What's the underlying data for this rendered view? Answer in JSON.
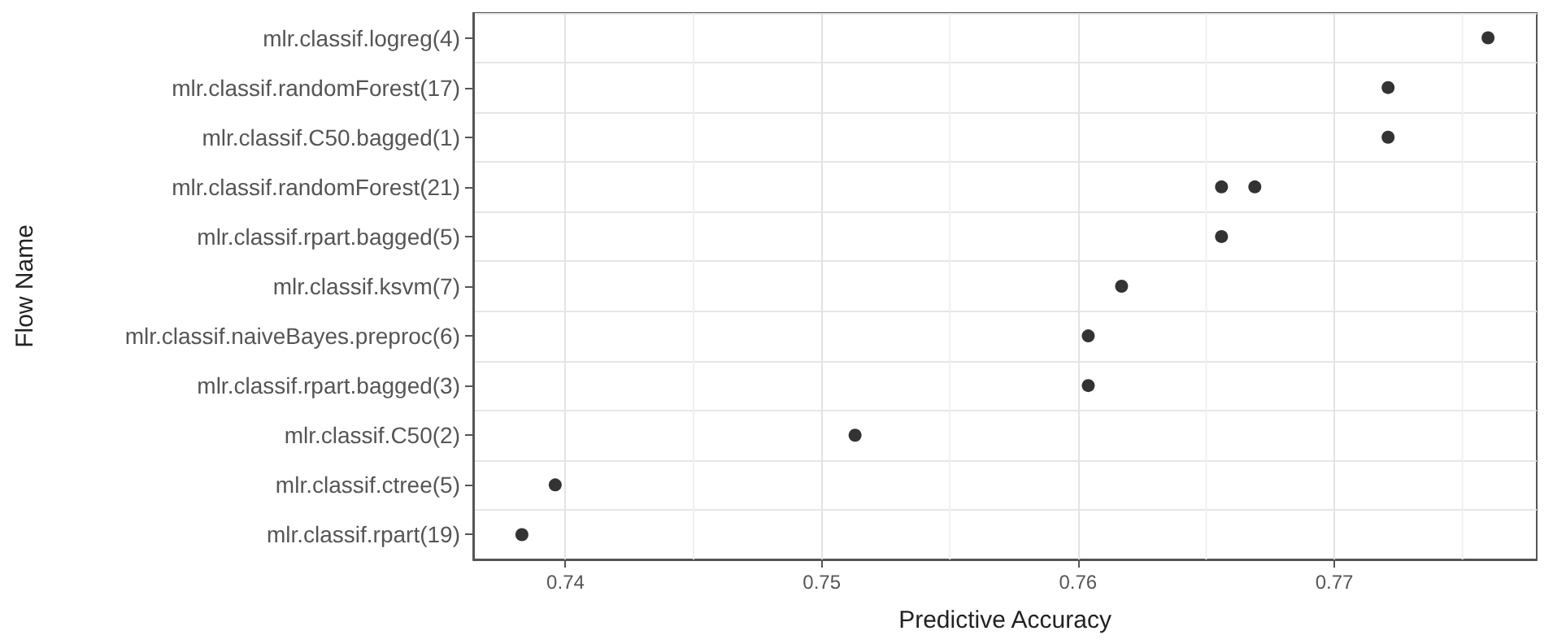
{
  "chart_data": {
    "type": "scatter",
    "orientation": "horizontal",
    "xlabel": "Predictive Accuracy",
    "ylabel": "Flow Name",
    "categories": [
      "mlr.classif.logreg(4)",
      "mlr.classif.randomForest(17)",
      "mlr.classif.C50.bagged(1)",
      "mlr.classif.randomForest(21)",
      "mlr.classif.rpart.bagged(5)",
      "mlr.classif.ksvm(7)",
      "mlr.classif.naiveBayes.preproc(6)",
      "mlr.classif.rpart.bagged(3)",
      "mlr.classif.C50(2)",
      "mlr.classif.ctree(5)",
      "mlr.classif.rpart(19)"
    ],
    "series": [
      {
        "color": "#000000",
        "values": [
          0.776,
          0.7721,
          0.7721,
          0.7656,
          0.7656,
          0.7617,
          0.7604,
          0.7604,
          0.7513,
          0.7396,
          0.7383
        ]
      },
      {
        "color": "#000000",
        "values": [
          null,
          null,
          null,
          0.7669,
          null,
          null,
          null,
          null,
          null,
          null,
          null
        ]
      }
    ],
    "xlim": [
      0.7364,
      0.7779
    ],
    "xticks": [
      0.74,
      {
        "value": 0.745,
        "label": null
      },
      0.75,
      {
        "value": 0.755,
        "label": null
      },
      0.76,
      {
        "value": 0.765,
        "label": null
      },
      0.77,
      {
        "value": 0.775,
        "label": null
      }
    ],
    "grid": true,
    "marker": "circle"
  }
}
